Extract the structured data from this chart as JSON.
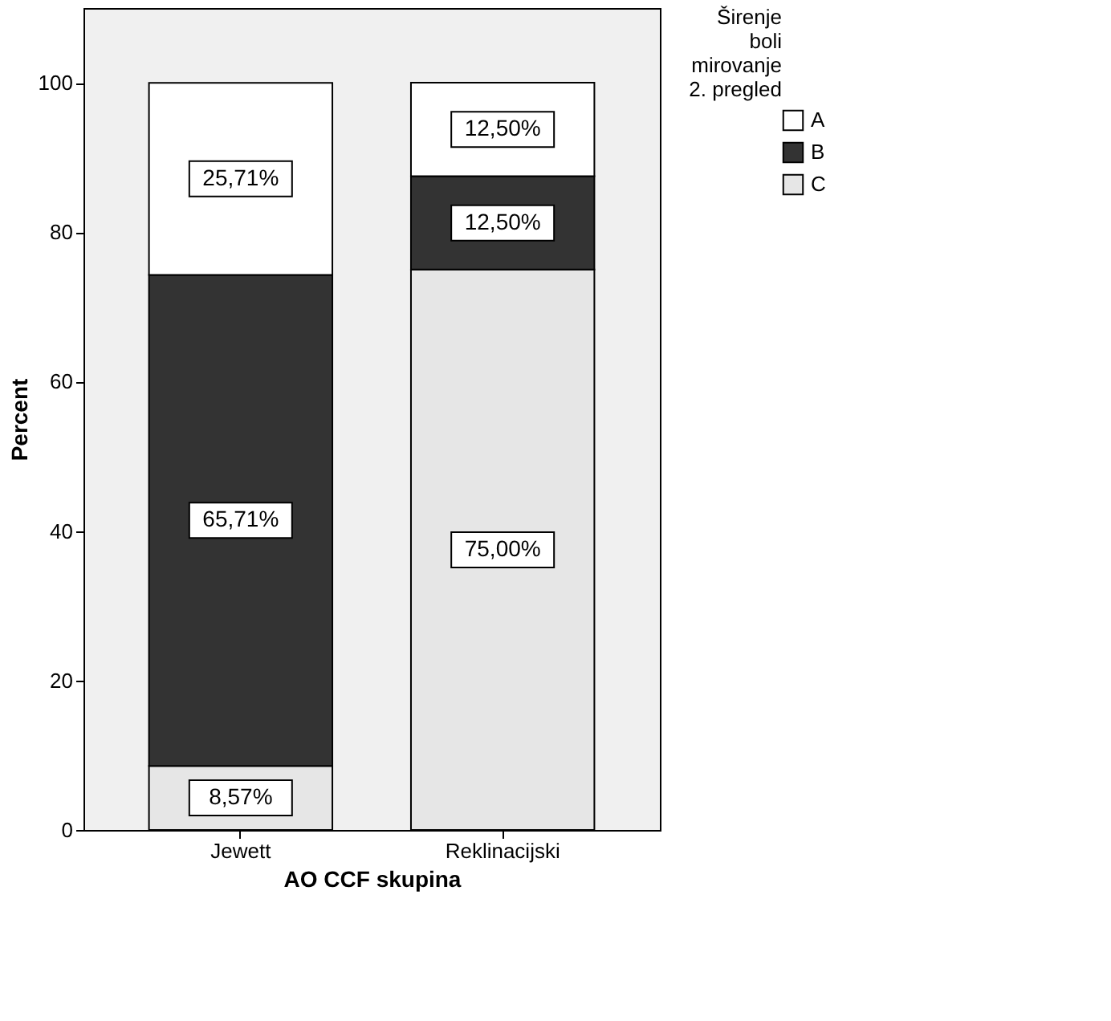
{
  "chart_data": {
    "type": "bar",
    "stacked": true,
    "xlabel": "AO CCF skupina",
    "ylabel": "Percent",
    "legend_title": "Širenje boli mirovanje 2. pregled",
    "legend": "right",
    "grid": false,
    "categories": [
      "Jewett",
      "Reklinacijski"
    ],
    "ylim": [
      0,
      110
    ],
    "yticks": [
      0,
      20,
      40,
      60,
      80,
      100
    ],
    "series": [
      {
        "name": "C",
        "color": "#e6e6e6",
        "values": [
          8.57,
          75.0
        ],
        "value_labels": [
          "8,57%",
          "75,00%"
        ]
      },
      {
        "name": "B",
        "color": "#333333",
        "values": [
          65.71,
          12.5
        ],
        "value_labels": [
          "65,71%",
          "12,50%"
        ]
      },
      {
        "name": "A",
        "color": "#ffffff",
        "values": [
          25.71,
          12.5
        ],
        "value_labels": [
          "25,71%",
          "12,50%"
        ]
      }
    ]
  }
}
